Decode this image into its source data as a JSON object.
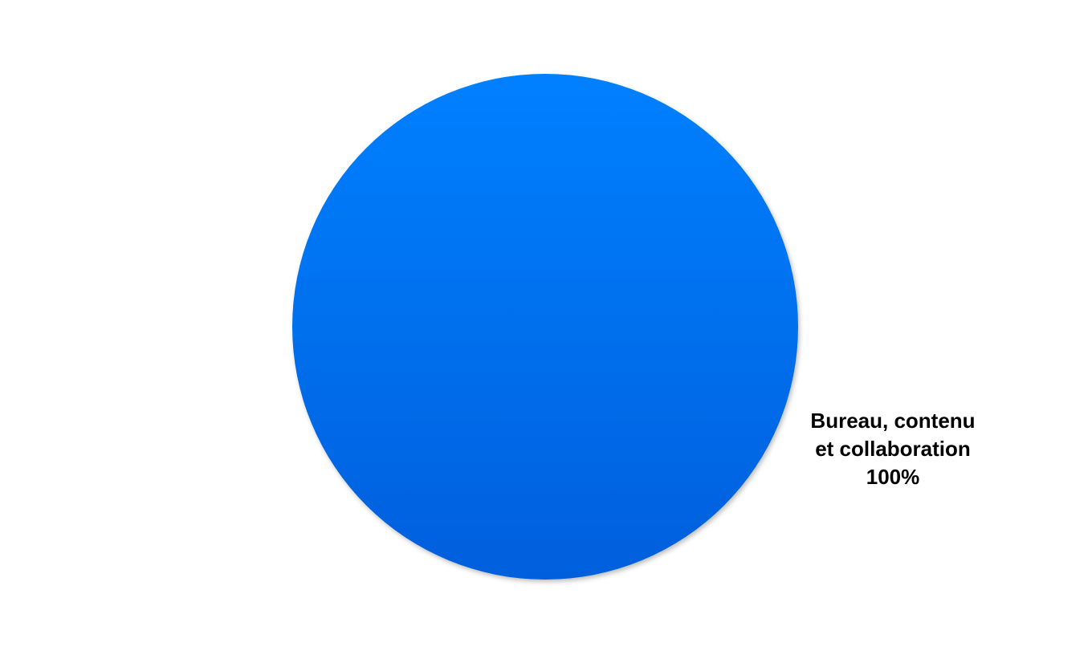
{
  "chart_data": {
    "type": "pie",
    "slices": [
      {
        "label": "Bureau, contenu et collaboration",
        "label_lines": [
          "Bureau, contenu",
          "et collaboration"
        ],
        "value": 100,
        "percent_label": "100%",
        "color": "#0074ec"
      }
    ],
    "legend": "none",
    "colors": {
      "fill_top": "#0080ff",
      "fill_bottom": "#005fdc",
      "label": "#000000"
    }
  }
}
